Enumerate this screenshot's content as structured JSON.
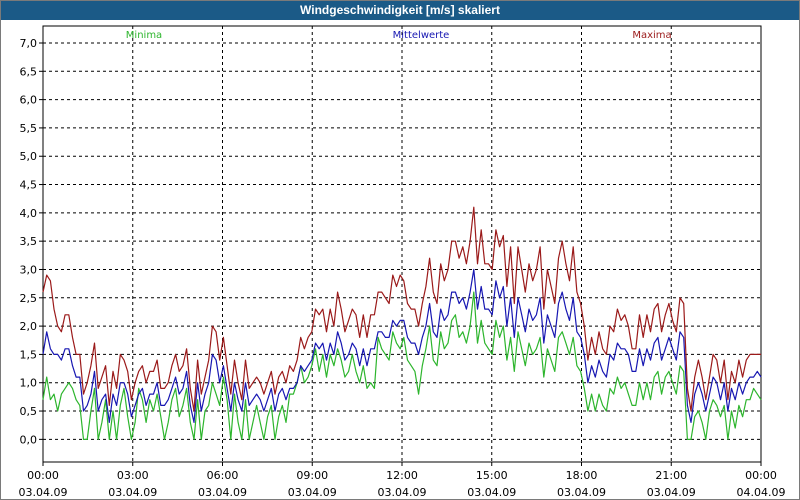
{
  "window": {
    "title": "Windgeschwindigkeit [m/s] skaliert"
  },
  "colors": {
    "min": "#2db52d",
    "mean": "#1717b2",
    "max": "#9b1a1a",
    "titlebar": "#1b5a87"
  },
  "chart_data": {
    "type": "line",
    "title": "Windgeschwindigkeit [m/s] skaliert",
    "ylim": [
      -0.4,
      7.3
    ],
    "xlim": [
      0,
      24
    ],
    "grid": true,
    "legend_placement": "top",
    "y_ticks": [
      "0,0",
      "0,5",
      "1,0",
      "1,5",
      "2,0",
      "2,5",
      "3,0",
      "3,5",
      "4,0",
      "4,5",
      "5,0",
      "5,5",
      "6,0",
      "6,5",
      "7,0"
    ],
    "x_ticks": [
      {
        "time": "00:00",
        "date": "03.04.09"
      },
      {
        "time": "03:00",
        "date": "03.04.09"
      },
      {
        "time": "06:00",
        "date": "03.04.09"
      },
      {
        "time": "09:00",
        "date": "03.04.09"
      },
      {
        "time": "12:00",
        "date": "03.04.09"
      },
      {
        "time": "15:00",
        "date": "03.04.09"
      },
      {
        "time": "18:00",
        "date": "03.04.09"
      },
      {
        "time": "21:00",
        "date": "03.04.09"
      },
      {
        "time": "00:00",
        "date": "04.04.09"
      }
    ],
    "series": [
      {
        "name": "Minima",
        "color": "#2db52d",
        "values": [
          0.7,
          1.1,
          0.7,
          0.8,
          0.5,
          0.8,
          0.9,
          1.0,
          0.9,
          0.7,
          0.6,
          0.0,
          0.0,
          0.5,
          0.9,
          0.0,
          0.3,
          0.7,
          0.0,
          0.5,
          0.0,
          0.6,
          0.9,
          0.4,
          0.0,
          0.3,
          0.9,
          0.7,
          0.3,
          0.7,
          0.5,
          0.8,
          0.4,
          0.0,
          0.3,
          0.7,
          0.9,
          0.4,
          0.6,
          0.9,
          0.3,
          0.0,
          0.7,
          0.0,
          0.5,
          0.6,
          1.0,
          0.8,
          0.6,
          1.1,
          0.7,
          0.0,
          0.8,
          0.3,
          0.0,
          0.7,
          0.0,
          0.3,
          0.6,
          0.3,
          0.0,
          0.4,
          0.6,
          0.0,
          0.4,
          0.6,
          0.3,
          0.8,
          0.8,
          1.0,
          1.3,
          1.0,
          1.1,
          1.3,
          1.6,
          1.2,
          1.5,
          1.1,
          1.5,
          1.3,
          1.6,
          1.4,
          1.1,
          1.2,
          1.5,
          1.2,
          1.0,
          1.3,
          0.9,
          1.0,
          0.9,
          1.8,
          1.6,
          1.5,
          1.4,
          1.9,
          1.7,
          1.6,
          1.8,
          1.4,
          1.3,
          1.2,
          0.8,
          1.3,
          1.6,
          2.0,
          1.4,
          1.3,
          1.9,
          1.6,
          1.7,
          2.1,
          2.2,
          1.8,
          1.9,
          1.7,
          2.0,
          2.6,
          1.7,
          2.1,
          1.7,
          1.6,
          1.5,
          2.1,
          1.8,
          2.0,
          1.4,
          1.8,
          1.2,
          1.9,
          1.6,
          1.3,
          1.7,
          1.5,
          1.6,
          1.8,
          1.1,
          1.6,
          1.4,
          1.2,
          1.8,
          1.9,
          1.7,
          1.5,
          1.8,
          1.3,
          1.2,
          0.9,
          0.5,
          0.8,
          0.5,
          0.8,
          0.6,
          0.5,
          0.9,
          0.8,
          1.1,
          0.9,
          1.0,
          0.8,
          0.6,
          0.6,
          1.0,
          0.7,
          1.0,
          0.7,
          1.1,
          1.2,
          0.8,
          1.1,
          1.2,
          1.0,
          0.8,
          1.3,
          1.2,
          0.0,
          0.0,
          0.4,
          0.5,
          0.3,
          0.0,
          0.5,
          0.7,
          0.6,
          0.4,
          0.6,
          0.0,
          0.5,
          0.2,
          0.6,
          0.4,
          0.7,
          0.7,
          0.9,
          0.8,
          0.7
        ]
      },
      {
        "name": "Mittelwerte",
        "color": "#1717b2",
        "values": [
          1.5,
          1.9,
          1.6,
          1.5,
          1.5,
          1.4,
          1.6,
          1.6,
          1.3,
          1.1,
          1.1,
          0.5,
          0.6,
          0.8,
          1.2,
          0.5,
          0.7,
          0.8,
          0.3,
          0.8,
          0.6,
          1.0,
          1.0,
          0.8,
          0.4,
          0.6,
          0.8,
          0.9,
          0.6,
          0.8,
          0.8,
          1.0,
          0.6,
          0.6,
          0.7,
          0.9,
          1.1,
          0.8,
          0.9,
          1.2,
          0.6,
          0.3,
          1.0,
          0.5,
          0.8,
          1.0,
          1.5,
          1.4,
          1.0,
          1.3,
          0.9,
          0.5,
          1.0,
          0.7,
          0.5,
          1.0,
          0.6,
          0.7,
          0.8,
          0.7,
          0.5,
          0.7,
          0.9,
          0.5,
          0.8,
          0.9,
          0.7,
          0.9,
          0.9,
          1.0,
          1.3,
          1.2,
          1.3,
          1.4,
          1.7,
          1.6,
          1.7,
          1.4,
          1.7,
          1.5,
          1.9,
          1.7,
          1.4,
          1.5,
          1.7,
          1.6,
          1.3,
          1.6,
          1.3,
          1.6,
          1.6,
          1.9,
          1.9,
          1.8,
          1.8,
          2.1,
          2.0,
          2.1,
          2.1,
          1.8,
          1.7,
          1.7,
          1.5,
          1.8,
          2.0,
          2.4,
          1.9,
          1.8,
          2.3,
          2.1,
          2.2,
          2.6,
          2.6,
          2.4,
          2.5,
          2.3,
          2.6,
          3.0,
          2.3,
          2.7,
          2.3,
          2.3,
          2.2,
          2.8,
          2.5,
          2.7,
          2.0,
          2.5,
          1.8,
          2.5,
          2.2,
          1.9,
          2.3,
          2.1,
          2.2,
          2.5,
          1.7,
          2.2,
          2.0,
          1.8,
          2.4,
          2.6,
          2.3,
          2.1,
          2.5,
          1.9,
          1.8,
          1.5,
          1.0,
          1.3,
          1.1,
          1.4,
          1.2,
          1.1,
          1.5,
          1.4,
          1.7,
          1.6,
          1.6,
          1.5,
          1.2,
          1.2,
          1.6,
          1.3,
          1.6,
          1.4,
          1.7,
          1.8,
          1.4,
          1.6,
          1.8,
          1.6,
          1.4,
          1.9,
          1.8,
          0.6,
          0.3,
          0.8,
          1.0,
          0.8,
          0.5,
          0.8,
          1.1,
          1.0,
          0.7,
          1.0,
          0.5,
          0.9,
          0.7,
          1.0,
          0.8,
          1.0,
          1.1,
          1.1,
          1.2,
          1.1
        ]
      },
      {
        "name": "Maxima",
        "color": "#9b1a1a",
        "values": [
          2.6,
          2.9,
          2.8,
          2.3,
          2.0,
          1.9,
          2.2,
          2.2,
          1.8,
          1.5,
          1.5,
          0.8,
          1.0,
          1.3,
          1.7,
          0.9,
          1.1,
          1.3,
          0.6,
          1.2,
          0.9,
          1.5,
          1.4,
          1.2,
          0.7,
          1.0,
          1.2,
          1.3,
          1.0,
          1.2,
          1.2,
          1.4,
          0.9,
          0.9,
          1.0,
          1.3,
          1.5,
          1.2,
          1.3,
          1.6,
          0.9,
          0.5,
          1.4,
          0.8,
          1.1,
          1.4,
          2.0,
          1.9,
          1.4,
          1.8,
          1.3,
          0.8,
          1.4,
          1.0,
          0.7,
          1.4,
          0.9,
          1.0,
          1.1,
          1.0,
          0.8,
          1.0,
          1.2,
          0.8,
          1.1,
          1.2,
          1.0,
          1.3,
          1.2,
          1.4,
          1.8,
          1.6,
          1.8,
          1.9,
          2.3,
          2.2,
          2.3,
          1.9,
          2.3,
          2.0,
          2.6,
          2.3,
          1.9,
          2.1,
          2.3,
          2.2,
          1.8,
          2.2,
          1.8,
          2.2,
          2.2,
          2.6,
          2.6,
          2.5,
          2.4,
          2.9,
          2.7,
          2.9,
          2.8,
          2.4,
          2.3,
          2.3,
          2.0,
          2.4,
          2.7,
          3.2,
          2.6,
          2.4,
          3.1,
          2.8,
          3.0,
          3.5,
          3.5,
          3.2,
          3.4,
          3.1,
          3.5,
          4.1,
          3.1,
          3.7,
          3.1,
          3.1,
          3.0,
          3.7,
          3.4,
          3.6,
          2.7,
          3.4,
          2.4,
          3.4,
          3.0,
          2.6,
          3.1,
          2.8,
          3.0,
          3.4,
          2.3,
          3.0,
          2.7,
          2.4,
          3.2,
          3.5,
          3.1,
          2.8,
          3.4,
          2.6,
          2.4,
          2.0,
          1.4,
          1.8,
          1.5,
          1.9,
          1.6,
          1.5,
          2.0,
          1.9,
          2.3,
          2.1,
          2.2,
          2.0,
          1.6,
          1.6,
          2.2,
          1.8,
          2.2,
          1.9,
          2.3,
          2.4,
          1.9,
          2.2,
          2.4,
          2.1,
          1.9,
          2.5,
          2.4,
          0.9,
          0.5,
          1.1,
          1.4,
          1.1,
          0.7,
          1.1,
          1.5,
          1.4,
          1.0,
          1.4,
          0.7,
          1.2,
          1.0,
          1.4,
          1.1,
          1.4,
          1.5,
          1.5,
          1.5,
          1.5
        ]
      }
    ]
  }
}
